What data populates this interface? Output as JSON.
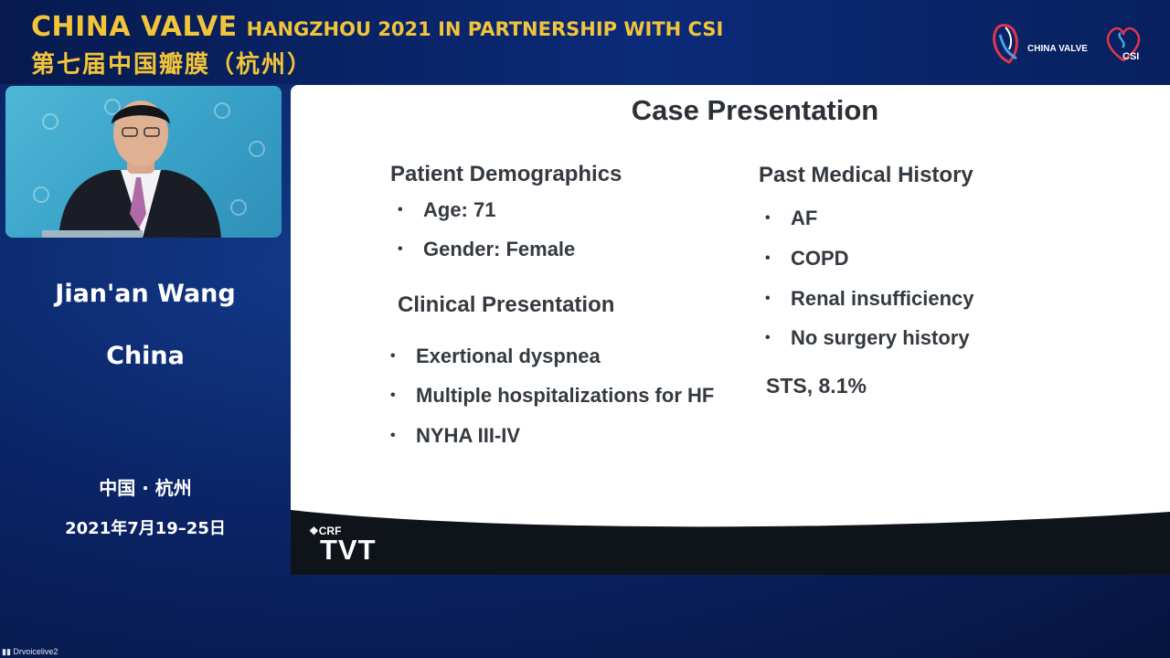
{
  "header": {
    "title_main": "CHINA VALVE",
    "title_rest": "HANGZHOU 2021 IN PARTNERSHIP WITH CSI",
    "title_cn": "第七届中国瓣膜（杭州）",
    "logo_cv_text": "CHINA VALVE",
    "logo_csi_text": "CSI"
  },
  "speaker": {
    "name": "Jian'an Wang",
    "country": "China"
  },
  "event": {
    "city": "中国 · 杭州",
    "dates": "2021年7月19–25日"
  },
  "slide": {
    "title": "Case Presentation",
    "demographics_heading": "Patient Demographics",
    "demographics": [
      "Age: 71",
      "Gender: Female"
    ],
    "clinical_heading": "Clinical Presentation",
    "clinical": [
      "Exertional dyspnea",
      "Multiple hospitalizations for HF",
      "NYHA III-IV"
    ],
    "history_heading": "Past Medical History",
    "history": [
      "AF",
      "COPD",
      "Renal insufficiency",
      "No surgery history"
    ],
    "sts": "STS, 8.1%",
    "footer_crf": "CRF",
    "footer_brand": "TVT"
  },
  "stream_tag": "Drvoicelive2",
  "colors": {
    "accent_gold": "#f2c43a",
    "background_blue": "#0b2466"
  }
}
